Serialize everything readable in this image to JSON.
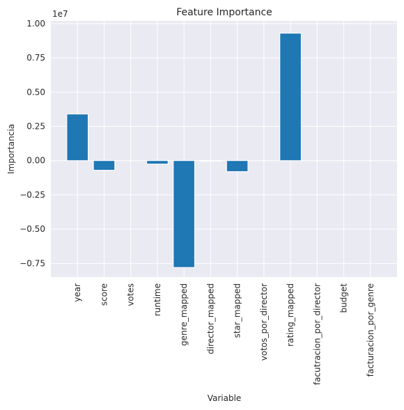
{
  "chart_data": {
    "type": "bar",
    "title": "Feature Importance",
    "xlabel": "Variable",
    "ylabel": "Importancia",
    "offset_text": "1e7",
    "categories": [
      "year",
      "score",
      "votes",
      "runtime",
      "genre_mapped",
      "director_mapped",
      "star_mapped",
      "votos_por_director",
      "rating_mapped",
      "facutracion_por_director",
      "budget",
      "facturacion_por_genre"
    ],
    "values": [
      0.34,
      -0.07,
      0.0,
      -0.025,
      -0.78,
      -0.005,
      -0.08,
      0.0,
      0.93,
      0.0,
      0.0,
      0.0
    ],
    "color": "#1f77b4",
    "ylim": [
      -0.85,
      1.02
    ],
    "yticks": [
      {
        "value": -0.75,
        "label": "−0.75"
      },
      {
        "value": -0.5,
        "label": "−0.50"
      },
      {
        "value": -0.25,
        "label": "−0.25"
      },
      {
        "value": 0,
        "label": "0.00"
      },
      {
        "value": 0.25,
        "label": "0.25"
      },
      {
        "value": 0.5,
        "label": "0.50"
      },
      {
        "value": 0.75,
        "label": "0.75"
      },
      {
        "value": 1,
        "label": "1.00"
      }
    ],
    "grid": true
  }
}
